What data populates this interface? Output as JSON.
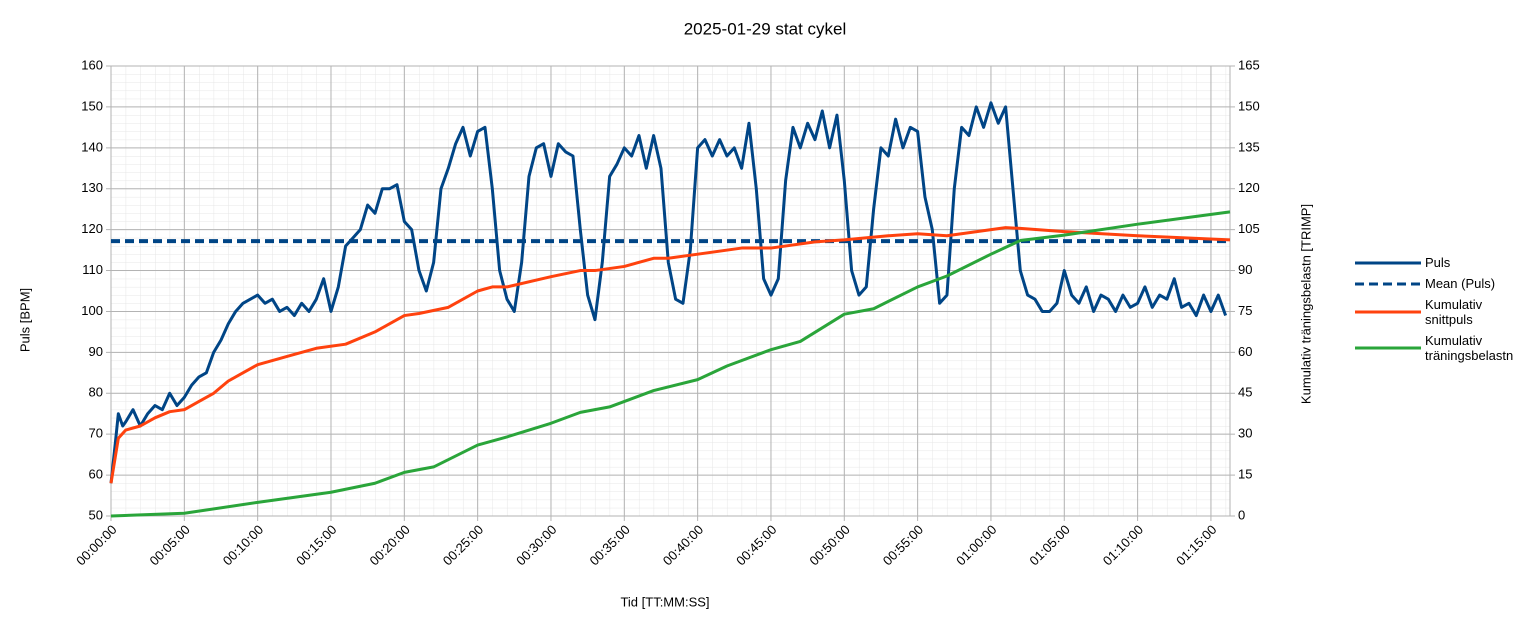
{
  "chart_data": {
    "type": "line",
    "title": "2025-01-29 stat cykel",
    "x_label": "Tid [TT:MM:SS]",
    "y_label": "Puls [BPM]",
    "y2_label": "Kumulativ träningsbelastn [TRIMP]",
    "xlim": [
      0,
      76.3
    ],
    "xticks": [
      {
        "value": 0,
        "label": "00:00:00"
      },
      {
        "value": 5,
        "label": "00:05:00"
      },
      {
        "value": 10,
        "label": "00:10:00"
      },
      {
        "value": 15,
        "label": "00:15:00"
      },
      {
        "value": 20,
        "label": "00:20:00"
      },
      {
        "value": 25,
        "label": "00:25:00"
      },
      {
        "value": 30,
        "label": "00:30:00"
      },
      {
        "value": 35,
        "label": "00:35:00"
      },
      {
        "value": 40,
        "label": "00:40:00"
      },
      {
        "value": 45,
        "label": "00:45:00"
      },
      {
        "value": 50,
        "label": "00:50:00"
      },
      {
        "value": 55,
        "label": "00:55:00"
      },
      {
        "value": 60,
        "label": "01:00:00"
      },
      {
        "value": 65,
        "label": "01:05:00"
      },
      {
        "value": 70,
        "label": "01:10:00"
      },
      {
        "value": 75,
        "label": "01:15:00"
      }
    ],
    "ylim": [
      50,
      160
    ],
    "yticks": [
      50,
      60,
      70,
      80,
      90,
      100,
      110,
      120,
      130,
      140,
      150,
      160
    ],
    "y2lim": [
      0,
      165
    ],
    "y2ticks": [
      0,
      15,
      30,
      45,
      60,
      75,
      90,
      105,
      120,
      135,
      150,
      165
    ],
    "grid": true,
    "legend": "right",
    "series": [
      {
        "name": "Puls",
        "color": "#004586",
        "x": [
          0,
          0.3,
          0.5,
          0.8,
          1,
          1.5,
          2,
          2.5,
          3,
          3.5,
          4,
          4.5,
          5,
          5.5,
          6,
          6.5,
          7,
          7.5,
          8,
          8.5,
          9,
          9.5,
          10,
          10.5,
          11,
          11.5,
          12,
          12.5,
          13,
          13.5,
          14,
          14.5,
          15,
          15.5,
          16,
          16.5,
          17,
          17.5,
          18,
          18.5,
          19,
          19.5,
          20,
          20.5,
          21,
          21.5,
          22,
          22.5,
          23,
          23.5,
          24,
          24.5,
          25,
          25.5,
          26,
          26.5,
          27,
          27.5,
          28,
          28.5,
          29,
          29.5,
          30,
          30.5,
          31,
          31.5,
          32,
          32.5,
          33,
          33.5,
          34,
          34.5,
          35,
          35.5,
          36,
          36.5,
          37,
          37.5,
          38,
          38.5,
          39,
          39.5,
          40,
          40.5,
          41,
          41.5,
          42,
          42.5,
          43,
          43.5,
          44,
          44.5,
          45,
          45.5,
          46,
          46.5,
          47,
          47.5,
          48,
          48.5,
          49,
          49.5,
          50,
          50.5,
          51,
          51.5,
          52,
          52.5,
          53,
          53.5,
          54,
          54.5,
          55,
          55.5,
          56,
          56.5,
          57,
          57.5,
          58,
          58.5,
          59,
          59.5,
          60,
          60.5,
          61,
          61.5,
          62,
          62.5,
          63,
          63.5,
          64,
          64.5,
          65,
          65.5,
          66,
          66.5,
          67,
          67.5,
          68,
          68.5,
          69,
          69.5,
          70,
          70.5,
          71,
          71.5,
          72,
          72.5,
          73,
          73.5,
          74,
          74.5,
          75,
          75.5,
          76
        ],
        "values": [
          58,
          68,
          75,
          72,
          73,
          76,
          72,
          75,
          77,
          76,
          80,
          77,
          79,
          82,
          84,
          85,
          90,
          93,
          97,
          100,
          102,
          103,
          104,
          102,
          103,
          100,
          101,
          99,
          102,
          100,
          103,
          108,
          100,
          106,
          116,
          118,
          120,
          126,
          124,
          130,
          130,
          131,
          122,
          120,
          110,
          105,
          112,
          130,
          135,
          141,
          145,
          138,
          144,
          145,
          130,
          110,
          103,
          100,
          112,
          133,
          140,
          141,
          133,
          141,
          139,
          138,
          120,
          104,
          98,
          112,
          133,
          136,
          140,
          138,
          143,
          135,
          143,
          135,
          112,
          103,
          102,
          115,
          140,
          142,
          138,
          142,
          138,
          140,
          135,
          146,
          130,
          108,
          104,
          108,
          132,
          145,
          140,
          146,
          142,
          149,
          140,
          148,
          132,
          110,
          104,
          106,
          125,
          140,
          138,
          147,
          140,
          145,
          144,
          128,
          120,
          102,
          104,
          130,
          145,
          143,
          150,
          145,
          151,
          146,
          150,
          130,
          110,
          104,
          103,
          100,
          100,
          102,
          110,
          104,
          102,
          106,
          100,
          104,
          103,
          100,
          104,
          101,
          102,
          106,
          101,
          104,
          103,
          108,
          101,
          102,
          99,
          104,
          100,
          104,
          99
        ]
      },
      {
        "name": "Mean (Puls)",
        "color": "#004586",
        "line_style": "dashed",
        "x": [
          0,
          76.3
        ],
        "values": [
          117.2,
          117.2
        ]
      },
      {
        "name": "Kumulativ snittpuls",
        "color": "#ff420e",
        "x": [
          0,
          0.5,
          1,
          2,
          3,
          4,
          5,
          6,
          7,
          8,
          9,
          10,
          12,
          14,
          16,
          18,
          20,
          21,
          23,
          25,
          26,
          27,
          30,
          32,
          33,
          35,
          37,
          38,
          40,
          43,
          45,
          48,
          50,
          53,
          55,
          57,
          61,
          62,
          65,
          70,
          76.3
        ],
        "values": [
          58,
          69,
          71,
          72,
          74,
          75.5,
          76,
          78,
          80,
          83,
          85,
          87,
          89,
          91,
          92,
          95,
          99,
          99.5,
          101,
          105,
          106,
          106,
          108.5,
          110,
          110,
          111,
          113,
          113,
          114,
          115.5,
          115.5,
          117,
          117.5,
          118.5,
          119,
          118.5,
          120.5,
          120.3,
          119.5,
          118.5,
          117.5
        ]
      },
      {
        "name": "Kumulativ träningsbelastn",
        "color": "#2aa53a",
        "axis": "y2",
        "x": [
          0,
          5,
          10,
          15,
          18,
          20,
          22,
          25,
          27,
          30,
          32,
          34,
          37,
          40,
          42,
          45,
          47,
          50,
          52,
          55,
          57,
          60,
          62,
          65,
          70,
          76.3
        ],
        "values": [
          0,
          1,
          5,
          8.7,
          12,
          16,
          18,
          26,
          29,
          34,
          38,
          40,
          46,
          50,
          55,
          61,
          64,
          74,
          76,
          84,
          88,
          96,
          101,
          103,
          107,
          111.5
        ]
      }
    ]
  }
}
